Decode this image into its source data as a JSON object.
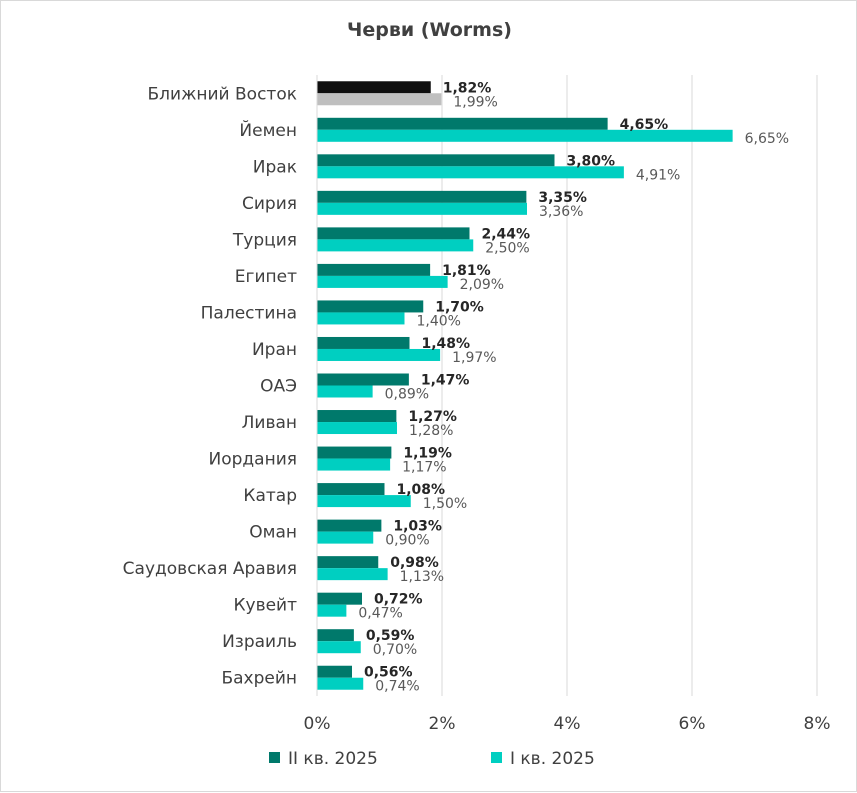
{
  "chart_data": {
    "type": "bar",
    "orientation": "horizontal",
    "title": "Черви (Worms)",
    "categories": [
      "Ближний Восток",
      "Йемен",
      "Ирак",
      "Сирия",
      "Турция",
      "Египет",
      "Палестина",
      "Иран",
      "ОАЭ",
      "Ливан",
      "Иордания",
      "Катар",
      "Оман",
      "Саудовская Аравия",
      "Кувейт",
      "Израиль",
      "Бахрейн"
    ],
    "series": [
      {
        "name": "II кв. 2025",
        "color": "#00796b",
        "values": [
          1.82,
          4.65,
          3.8,
          3.35,
          2.44,
          1.81,
          1.7,
          1.48,
          1.47,
          1.27,
          1.19,
          1.08,
          1.03,
          0.98,
          0.72,
          0.59,
          0.56
        ],
        "labels": [
          "1,82%",
          "4,65%",
          "3,80%",
          "3,35%",
          "2,44%",
          "1,81%",
          "1,70%",
          "1,48%",
          "1,47%",
          "1,27%",
          "1,19%",
          "1,08%",
          "1,03%",
          "0,98%",
          "0,72%",
          "0,59%",
          "0,56%"
        ]
      },
      {
        "name": "I кв. 2025",
        "color": "#00cfc1",
        "values": [
          1.99,
          6.65,
          4.91,
          3.36,
          2.5,
          2.09,
          1.4,
          1.97,
          0.89,
          1.28,
          1.17,
          1.5,
          0.9,
          1.13,
          0.47,
          0.7,
          0.74
        ],
        "labels": [
          "1,99%",
          "6,65%",
          "4,91%",
          "3,36%",
          "2,50%",
          "2,09%",
          "1,40%",
          "1,97%",
          "0,89%",
          "1,28%",
          "1,17%",
          "1,50%",
          "0,90%",
          "1,13%",
          "0,47%",
          "0,70%",
          "0,74%"
        ]
      }
    ],
    "highlight": {
      "category": "Ближний Восток",
      "current_color": "#0f0f0f",
      "previous_color": "#bfbfbf"
    },
    "xlim": [
      0,
      8
    ],
    "xticks": [
      0,
      2,
      4,
      6,
      8
    ],
    "xtick_labels": [
      "0%",
      "2%",
      "4%",
      "6%",
      "8%"
    ],
    "xlabel": "",
    "ylabel": "",
    "grid": true,
    "legend_position": "bottom"
  }
}
